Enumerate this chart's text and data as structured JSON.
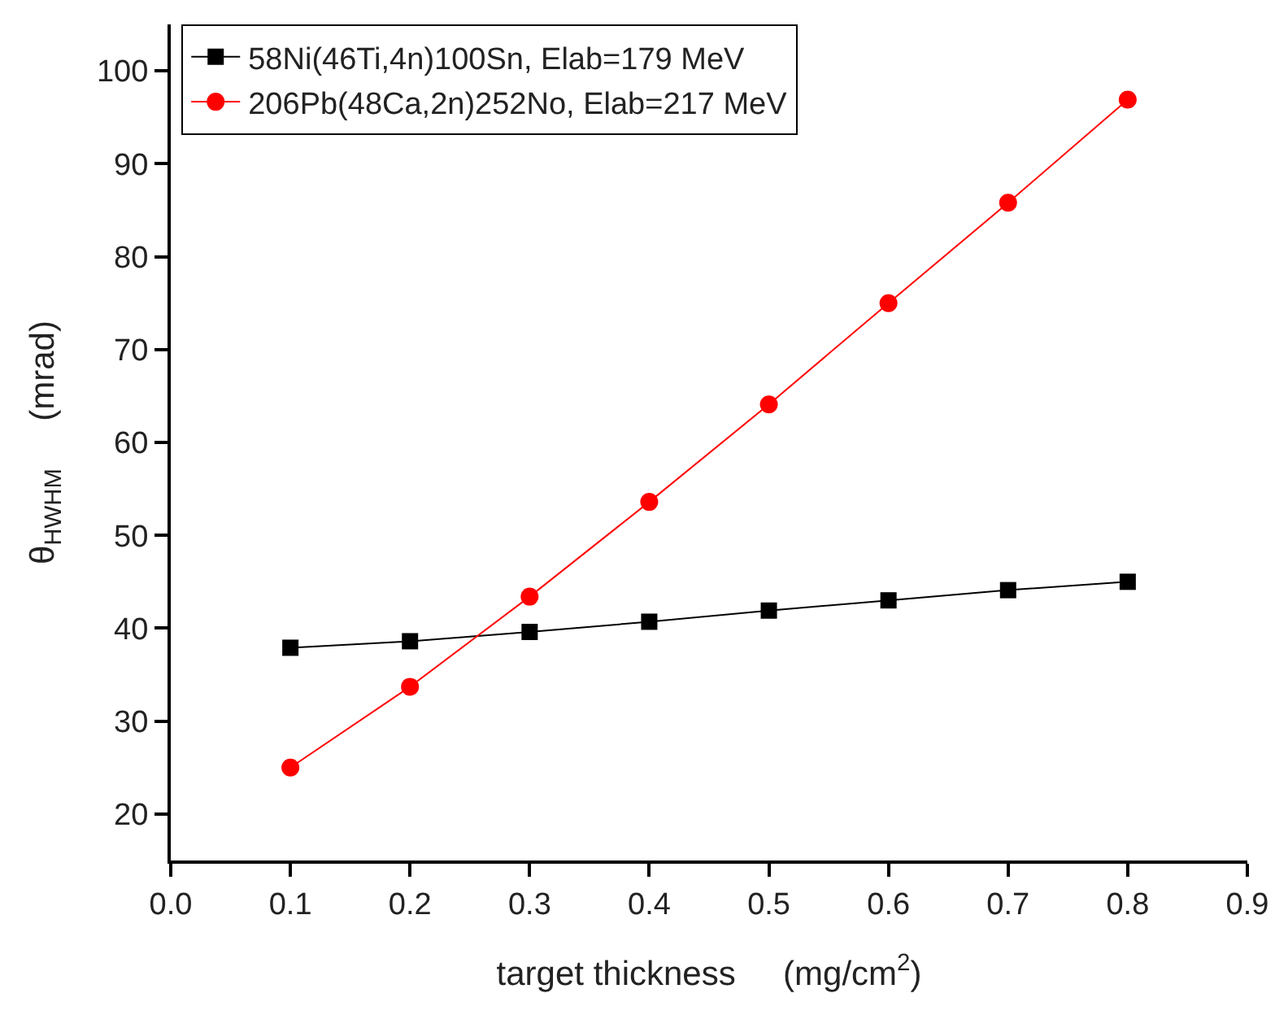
{
  "chart_data": {
    "type": "line",
    "xlabel": "target thickness     (mg/cm$^{2}$)",
    "ylabel": "θ$_{HWHM}$     (mrad)",
    "x": [
      0.1,
      0.2,
      0.3,
      0.4,
      0.5,
      0.6,
      0.7,
      0.8
    ],
    "series": [
      {
        "name": "58Ni(46Ti,4n)100Sn, Elab=179 MeV",
        "color": "#000000",
        "marker": "square",
        "values": [
          37.9,
          38.6,
          39.6,
          40.7,
          41.9,
          43.0,
          44.1,
          45.0
        ]
      },
      {
        "name": "206Pb(48Ca,2n)252No, Elab=217 MeV",
        "color": "#ff0000",
        "marker": "circle",
        "values": [
          25.0,
          33.7,
          43.4,
          53.6,
          64.1,
          75.0,
          85.8,
          96.9
        ]
      }
    ],
    "xlim": [
      0,
      0.9
    ],
    "xticks": [
      {
        "value": 0,
        "label": "0.0"
      },
      0.1,
      0.2,
      0.3,
      0.4,
      0.5,
      0.6,
      0.7,
      0.8,
      0.9
    ],
    "ylim": [
      15,
      105
    ],
    "yticks": [
      20,
      30,
      40,
      50,
      60,
      70,
      80,
      90,
      100
    ],
    "grid": false,
    "legend": "top left",
    "line_style": "solid"
  }
}
